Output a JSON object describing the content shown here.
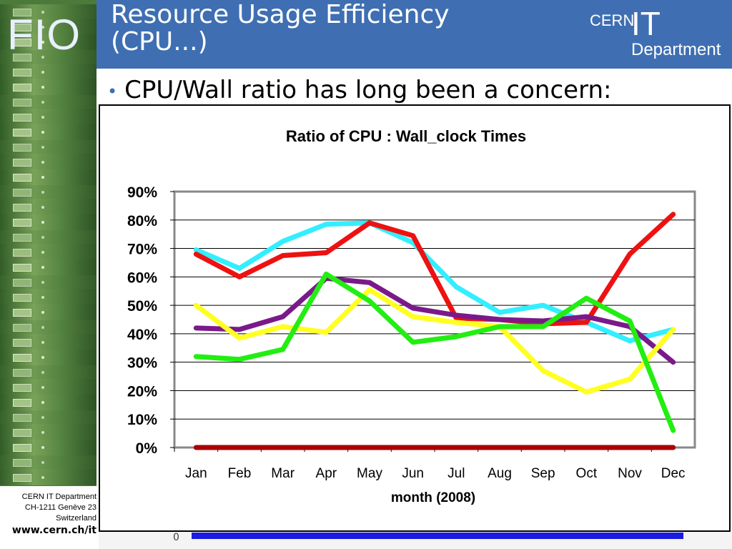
{
  "logo": {
    "text": "FIO"
  },
  "header": {
    "title": "Resource Usage Efficiency (CPU...)",
    "cern_logo": {
      "cern": "CERN",
      "it": "IT",
      "department": "Department"
    }
  },
  "bullet": {
    "text": "CPU/Wall ratio has long been a concern:"
  },
  "footer": {
    "line1": "CERN IT Department",
    "line2": "CH-1211 Genève 23",
    "line3": "Switzerland",
    "url": "www.cern.ch/it"
  },
  "bottom_strip": {
    "zero_label": "0"
  },
  "colors": {
    "header_bg": "#3f6fb2",
    "sidebar_green": "#4b7a3a"
  },
  "chart_data": {
    "type": "line",
    "title": "Ratio of CPU : Wall_clock Times",
    "xlabel": "month (2008)",
    "ylabel": "",
    "categories": [
      "Jan",
      "Feb",
      "Mar",
      "Apr",
      "May",
      "Jun",
      "Jul",
      "Aug",
      "Sep",
      "Oct",
      "Nov",
      "Dec"
    ],
    "ylim": [
      0,
      90
    ],
    "yticks": [
      "0%",
      "10%",
      "20%",
      "30%",
      "40%",
      "50%",
      "60%",
      "70%",
      "80%",
      "90%"
    ],
    "grid": true,
    "legend": "none",
    "series": [
      {
        "color": "#33eeff",
        "values": [
          69.5,
          63,
          72.5,
          78.5,
          79,
          72,
          56.5,
          47.5,
          50,
          44,
          37.5,
          41.5
        ]
      },
      {
        "color": "#ee1111",
        "values": [
          68,
          60,
          67.5,
          68.5,
          79,
          74.5,
          45.5,
          45,
          43.5,
          44,
          68,
          82
        ]
      },
      {
        "color": "#7a1a8a",
        "values": [
          42,
          41.5,
          46,
          59.5,
          58,
          49,
          46.5,
          45,
          44.5,
          46,
          42.5,
          30
        ]
      },
      {
        "color": "#ffff22",
        "values": [
          50,
          38.5,
          42.5,
          40.5,
          55.5,
          46,
          44,
          42.5,
          27,
          19.5,
          24,
          41.5
        ]
      },
      {
        "color": "#22ee11",
        "values": [
          32,
          31,
          34.5,
          61,
          51.5,
          37,
          39,
          42.5,
          42.5,
          52.5,
          44.5,
          6
        ]
      },
      {
        "color": "#aa0000",
        "values": [
          0,
          0,
          0,
          0,
          0,
          0,
          0,
          0,
          0,
          0,
          0,
          0
        ]
      }
    ]
  }
}
